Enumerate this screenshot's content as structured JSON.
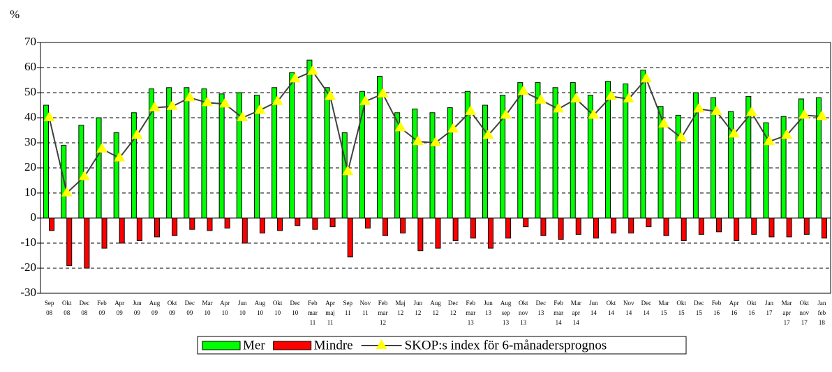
{
  "chart_data": {
    "type": "bar_line",
    "y_label": "%",
    "categories": [
      [
        "Sep",
        "08"
      ],
      [
        "Okt",
        "08"
      ],
      [
        "Dec",
        "08"
      ],
      [
        "Feb",
        "09"
      ],
      [
        "Apr",
        "09"
      ],
      [
        "Jun",
        "09"
      ],
      [
        "Aug",
        "09"
      ],
      [
        "Okt",
        "09"
      ],
      [
        "Dec",
        "09"
      ],
      [
        "Mar",
        "10"
      ],
      [
        "Apr",
        "10"
      ],
      [
        "Jun",
        "10"
      ],
      [
        "Aug",
        "10"
      ],
      [
        "Okt",
        "10"
      ],
      [
        "Dec",
        "10"
      ],
      [
        "Feb",
        "mar",
        "11"
      ],
      [
        "Apr",
        "maj",
        "11"
      ],
      [
        "Sep",
        "11"
      ],
      [
        "Nov",
        "11"
      ],
      [
        "Feb",
        "mar",
        "12"
      ],
      [
        "Maj",
        "12"
      ],
      [
        "Jun",
        "12"
      ],
      [
        "Aug",
        "12"
      ],
      [
        "Dec",
        "12"
      ],
      [
        "Feb",
        "mar",
        "13"
      ],
      [
        "Jun",
        "13"
      ],
      [
        "Aug",
        "sep",
        "13"
      ],
      [
        "Okt",
        "nov",
        "13"
      ],
      [
        "Dec",
        "13"
      ],
      [
        "Feb",
        "mar",
        "14"
      ],
      [
        "Mar",
        "apr",
        "14"
      ],
      [
        "Jun",
        "14"
      ],
      [
        "Okt",
        "14"
      ],
      [
        "Nov",
        "14"
      ],
      [
        "Dec",
        "14"
      ],
      [
        "Mar",
        "15"
      ],
      [
        "Okt",
        "15"
      ],
      [
        "Dec",
        "15"
      ],
      [
        "Feb",
        "16"
      ],
      [
        "Apr",
        "16"
      ],
      [
        "Okt",
        "16"
      ],
      [
        "Jan",
        "17"
      ],
      [
        "Mar",
        "apr",
        "17"
      ],
      [
        "Okt",
        "nov",
        "17"
      ],
      [
        "Jan",
        "feb",
        "18"
      ]
    ],
    "series": [
      {
        "name": "Mer",
        "type": "bar",
        "color": "#00ff00",
        "values": [
          45,
          29,
          37,
          40,
          34,
          42,
          51.5,
          52,
          52,
          51.5,
          49.5,
          50,
          49,
          52,
          58,
          63,
          52,
          34,
          50.5,
          56.5,
          42,
          43.5,
          42,
          44,
          50.5,
          45,
          49,
          54,
          54,
          52,
          54,
          49,
          54.5,
          53.5,
          59,
          44.5,
          41,
          50,
          48,
          42.5,
          48.5,
          38,
          40.5,
          47.5,
          48
        ]
      },
      {
        "name": "Mindre",
        "type": "bar",
        "color": "#ff0000",
        "values": [
          -5,
          -19,
          -20,
          -12,
          -10,
          -9,
          -7.5,
          -7,
          -4.5,
          -5,
          -4,
          -10,
          -6,
          -5,
          -3,
          -4.5,
          -3.5,
          -15.5,
          -4,
          -7,
          -6,
          -13,
          -12,
          -9,
          -8,
          -12,
          -8,
          -3.5,
          -7,
          -8.5,
          -6.5,
          -8,
          -6,
          -6,
          -3.5,
          -7,
          -9,
          -6.5,
          -5.5,
          -9,
          -6.5,
          -7.5,
          -7.5,
          -6.5,
          -8
        ]
      },
      {
        "name": "SKOP:s index för 6-månadersprognos",
        "type": "line",
        "color": "#404040",
        "marker_color": "#ffff00",
        "values": [
          40,
          10,
          16.5,
          27.5,
          24,
          33,
          44,
          44.5,
          48,
          46,
          45.5,
          40,
          43,
          46.5,
          55.5,
          58.5,
          48.5,
          18.5,
          46.5,
          49.5,
          36,
          30.5,
          30,
          35.5,
          42.5,
          33,
          41,
          50.5,
          47,
          43.5,
          47.5,
          41,
          48.5,
          47.5,
          55.5,
          37.5,
          32,
          43.5,
          42.5,
          33.5,
          42,
          30.5,
          33,
          41,
          40.5
        ]
      }
    ],
    "ylim": [
      -30,
      70
    ],
    "yticks": [
      -30,
      -20,
      -10,
      0,
      10,
      20,
      30,
      40,
      50,
      60,
      70
    ],
    "grid": true,
    "legend": "bottom"
  }
}
